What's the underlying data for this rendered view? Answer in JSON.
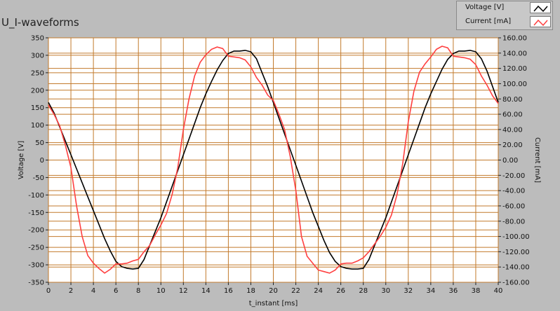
{
  "chart_data": {
    "type": "line",
    "title": "U_I-waveforms",
    "xlabel": "t_instant [ms]",
    "ylabel": "Voltage [V]",
    "y2label": "Current [mA]",
    "xlim": [
      0,
      40
    ],
    "ylim": [
      -350,
      350
    ],
    "y2lim": [
      -160,
      160
    ],
    "grid": true,
    "legend_position": "top-right",
    "x_ticks": [
      "0",
      "2",
      "4",
      "6",
      "8",
      "10",
      "12",
      "14",
      "16",
      "18",
      "20",
      "22",
      "24",
      "26",
      "28",
      "30",
      "32",
      "34",
      "36",
      "38",
      "40"
    ],
    "y_ticks": [
      "350",
      "300",
      "250",
      "200",
      "150",
      "100",
      "50",
      "0",
      "-50",
      "-100",
      "-150",
      "-200",
      "-250",
      "-300",
      "-350"
    ],
    "y2_ticks": [
      "160.00",
      "140.00",
      "120.00",
      "100.00",
      "80.00",
      "60.00",
      "40.00",
      "20.00",
      "0.00",
      "-20.00",
      "-40.00",
      "-60.00",
      "-80.00",
      "-100.00",
      "-120.00",
      "-140.00",
      "-160.00"
    ],
    "colors": {
      "plot_bg": "#ffffff",
      "grid": "#c27a2c",
      "voltage": "#000000",
      "current": "#ff4040"
    },
    "series": [
      {
        "name": "Voltage [V]",
        "axis": "left",
        "color": "#000000",
        "x": [
          0,
          0.5,
          1,
          1.5,
          2,
          2.5,
          3,
          3.5,
          4,
          4.5,
          5,
          5.5,
          6,
          6.5,
          7,
          7.5,
          8,
          8.5,
          9,
          9.5,
          10,
          10.5,
          11,
          11.5,
          12,
          12.5,
          13,
          13.5,
          14,
          14.5,
          15,
          15.5,
          16,
          16.5,
          17,
          17.5,
          18,
          18.5,
          19,
          19.5,
          20,
          20.5,
          21,
          21.5,
          22,
          22.5,
          23,
          23.5,
          24,
          24.5,
          25,
          25.5,
          26,
          26.5,
          27,
          27.5,
          28,
          28.5,
          29,
          29.5,
          30,
          30.5,
          31,
          31.5,
          32,
          32.5,
          33,
          33.5,
          34,
          34.5,
          35,
          35.5,
          36,
          36.5,
          37,
          37.5,
          38,
          38.5,
          39,
          39.5,
          40
        ],
        "values": [
          165,
          135,
          95,
          55,
          15,
          -25,
          -65,
          -105,
          -145,
          -185,
          -225,
          -260,
          -290,
          -305,
          -310,
          -312,
          -310,
          -285,
          -245,
          -205,
          -165,
          -120,
          -75,
          -30,
          15,
          60,
          105,
          150,
          190,
          225,
          258,
          285,
          305,
          312,
          312,
          314,
          310,
          290,
          250,
          210,
          165,
          120,
          75,
          30,
          -15,
          -60,
          -105,
          -150,
          -190,
          -230,
          -265,
          -290,
          -305,
          -310,
          -312,
          -312,
          -310,
          -285,
          -245,
          -205,
          -165,
          -120,
          -75,
          -30,
          15,
          60,
          105,
          150,
          190,
          225,
          260,
          288,
          305,
          312,
          312,
          314,
          310,
          290,
          255,
          210,
          165
        ]
      },
      {
        "name": "Current [mA]",
        "axis": "right",
        "color": "#ff4040",
        "x": [
          0,
          0.5,
          1,
          1.5,
          2,
          2.5,
          3,
          3.5,
          4,
          4.5,
          5,
          5.5,
          6,
          6.5,
          7,
          7.5,
          8,
          8.5,
          9,
          9.5,
          10,
          10.5,
          11,
          11.5,
          12,
          12.5,
          13,
          13.5,
          14,
          14.5,
          15,
          15.5,
          16,
          16.5,
          17,
          17.5,
          18,
          18.5,
          19,
          19.5,
          20,
          20.5,
          21,
          21.5,
          22,
          22.5,
          23,
          23.5,
          24,
          24.5,
          25,
          25.5,
          26,
          26.5,
          27,
          27.5,
          28,
          28.5,
          29,
          29.5,
          30,
          30.5,
          31,
          31.5,
          32,
          32.5,
          33,
          33.5,
          34,
          34.5,
          35,
          35.5,
          36,
          36.5,
          37,
          37.5,
          38,
          38.5,
          39,
          39.5,
          40
        ],
        "values": [
          72,
          60,
          45,
          20,
          -10,
          -60,
          -100,
          -125,
          -135,
          -142,
          -148,
          -143,
          -136,
          -136,
          -135,
          -132,
          -130,
          -120,
          -112,
          -98,
          -85,
          -70,
          -45,
          -10,
          40,
          80,
          110,
          128,
          138,
          145,
          148,
          146,
          136,
          135,
          134,
          131,
          122,
          108,
          98,
          85,
          78,
          60,
          40,
          5,
          -40,
          -100,
          -126,
          -135,
          -144,
          -146,
          -148,
          -144,
          -136,
          -135,
          -135,
          -132,
          -128,
          -120,
          -110,
          -100,
          -88,
          -72,
          -45,
          -5,
          50,
          90,
          115,
          126,
          135,
          145,
          149,
          147,
          136,
          135,
          134,
          132,
          125,
          110,
          98,
          84,
          74
        ]
      }
    ]
  },
  "legend": {
    "voltage_label": "Voltage [V]",
    "current_label": "Current [mA]"
  }
}
